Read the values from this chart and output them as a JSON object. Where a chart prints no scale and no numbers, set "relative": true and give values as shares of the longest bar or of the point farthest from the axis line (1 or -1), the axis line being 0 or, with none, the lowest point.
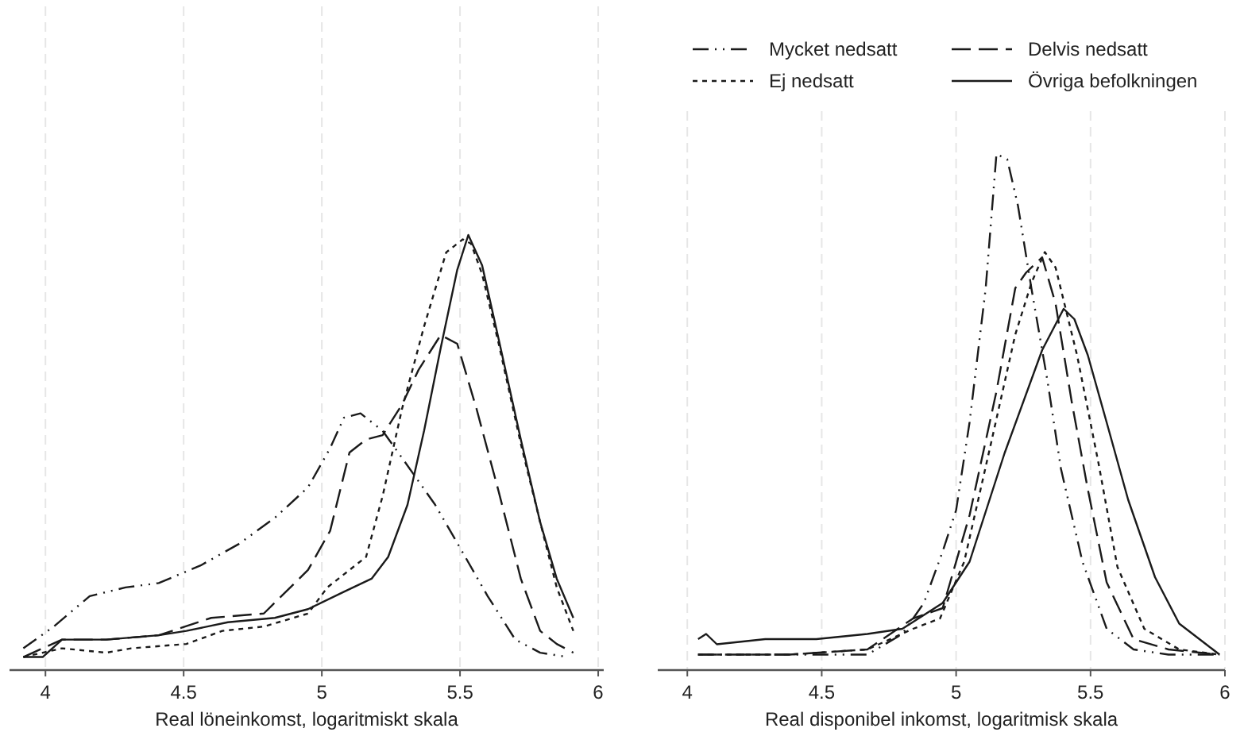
{
  "chart_data": [
    {
      "type": "line",
      "relative": true,
      "xlabel": "Real löneinkomst, logaritmiskt skala",
      "xlim": [
        3.87,
        6.02
      ],
      "xticks": [
        4,
        4.5,
        5,
        5.5,
        6
      ],
      "grid": "x",
      "legend": false,
      "series": [
        {
          "color": "#1a1a1a",
          "line_style": "dashdot",
          "x": [
            3.92,
            4.03,
            4.16,
            4.29,
            4.41,
            4.56,
            4.7,
            4.83,
            4.95,
            5.03,
            5.08,
            5.14,
            5.22,
            5.31,
            5.41,
            5.51,
            5.6,
            5.7,
            5.79,
            5.89
          ],
          "values": [
            0.05,
            0.1,
            0.17,
            0.19,
            0.2,
            0.24,
            0.29,
            0.35,
            0.42,
            0.51,
            0.58,
            0.59,
            0.55,
            0.47,
            0.38,
            0.27,
            0.17,
            0.07,
            0.04,
            0.03
          ]
        },
        {
          "color": "#1a1a1a",
          "line_style": "dashed",
          "x": [
            3.92,
            4.06,
            4.22,
            4.41,
            4.6,
            4.79,
            4.95,
            5.03,
            5.1,
            5.16,
            5.22,
            5.29,
            5.35,
            5.43,
            5.49,
            5.56,
            5.64,
            5.72,
            5.79,
            5.85,
            5.91
          ],
          "values": [
            0.03,
            0.07,
            0.07,
            0.08,
            0.12,
            0.13,
            0.23,
            0.32,
            0.5,
            0.53,
            0.54,
            0.61,
            0.69,
            0.77,
            0.75,
            0.6,
            0.41,
            0.21,
            0.09,
            0.06,
            0.04
          ]
        },
        {
          "color": "#1a1a1a",
          "line_style": "dotted",
          "x": [
            3.92,
            3.99,
            4.06,
            4.22,
            4.31,
            4.51,
            4.64,
            4.79,
            4.95,
            5.02,
            5.1,
            5.16,
            5.22,
            5.29,
            5.37,
            5.45,
            5.51,
            5.54,
            5.58,
            5.64,
            5.72,
            5.79,
            5.85,
            5.91
          ],
          "values": [
            0.03,
            0.04,
            0.05,
            0.04,
            0.05,
            0.06,
            0.09,
            0.1,
            0.13,
            0.19,
            0.23,
            0.26,
            0.4,
            0.6,
            0.79,
            0.96,
            0.99,
            0.98,
            0.91,
            0.75,
            0.52,
            0.34,
            0.19,
            0.09
          ]
        },
        {
          "color": "#1a1a1a",
          "line_style": "solid",
          "x": [
            3.92,
            3.99,
            4.06,
            4.22,
            4.41,
            4.51,
            4.66,
            4.83,
            4.95,
            5.08,
            5.18,
            5.24,
            5.31,
            5.37,
            5.43,
            5.49,
            5.53,
            5.58,
            5.64,
            5.72,
            5.79,
            5.85,
            5.91
          ],
          "values": [
            0.03,
            0.03,
            0.07,
            0.07,
            0.08,
            0.09,
            0.11,
            0.12,
            0.14,
            0.18,
            0.21,
            0.26,
            0.38,
            0.55,
            0.74,
            0.92,
            1.0,
            0.93,
            0.76,
            0.53,
            0.34,
            0.21,
            0.12
          ]
        }
      ]
    },
    {
      "type": "line",
      "relative": true,
      "xlabel": "Real disponibel inkomst, logaritmisk skala",
      "xlim": [
        3.89,
        6.0
      ],
      "xticks": [
        4,
        4.5,
        5,
        5.5,
        6
      ],
      "grid": "x",
      "legend": "top",
      "series": [
        {
          "name": "Mycket nedsatt",
          "color": "#1a1a1a",
          "line_style": "dashdot",
          "x": [
            4.04,
            4.38,
            4.67,
            4.8,
            4.88,
            4.95,
            5.0,
            5.05,
            5.11,
            5.15,
            5.19,
            5.23,
            5.28,
            5.34,
            5.39,
            5.47,
            5.56,
            5.66,
            5.79,
            5.98
          ],
          "values": [
            0.03,
            0.03,
            0.03,
            0.07,
            0.13,
            0.23,
            0.31,
            0.48,
            0.74,
            1.0,
            0.99,
            0.9,
            0.74,
            0.56,
            0.39,
            0.21,
            0.08,
            0.04,
            0.03,
            0.03
          ]
        },
        {
          "name": "Delvis nedsatt",
          "color": "#1a1a1a",
          "line_style": "dashed",
          "x": [
            4.04,
            4.38,
            4.67,
            4.84,
            4.95,
            5.05,
            5.15,
            5.22,
            5.26,
            5.32,
            5.37,
            5.43,
            5.49,
            5.56,
            5.66,
            5.79,
            5.98
          ],
          "values": [
            0.03,
            0.03,
            0.04,
            0.1,
            0.12,
            0.3,
            0.54,
            0.74,
            0.77,
            0.8,
            0.71,
            0.52,
            0.35,
            0.17,
            0.06,
            0.04,
            0.03
          ]
        },
        {
          "name": "Ej nedsatt",
          "color": "#1a1a1a",
          "line_style": "dotted",
          "x": [
            4.04,
            4.38,
            4.67,
            4.84,
            4.94,
            5.03,
            5.13,
            5.22,
            5.28,
            5.33,
            5.37,
            5.45,
            5.53,
            5.6,
            5.7,
            5.83,
            5.98
          ],
          "values": [
            0.03,
            0.03,
            0.04,
            0.08,
            0.1,
            0.21,
            0.44,
            0.65,
            0.75,
            0.81,
            0.78,
            0.61,
            0.4,
            0.2,
            0.08,
            0.04,
            0.03
          ]
        },
        {
          "name": "Övriga befolkningen",
          "color": "#1a1a1a",
          "line_style": "solid",
          "x": [
            4.04,
            4.07,
            4.11,
            4.29,
            4.48,
            4.67,
            4.8,
            4.95,
            5.05,
            5.18,
            5.32,
            5.4,
            5.44,
            5.49,
            5.56,
            5.64,
            5.74,
            5.83,
            5.93,
            5.98
          ],
          "values": [
            0.06,
            0.07,
            0.05,
            0.06,
            0.06,
            0.07,
            0.08,
            0.13,
            0.21,
            0.42,
            0.62,
            0.7,
            0.68,
            0.61,
            0.48,
            0.33,
            0.18,
            0.09,
            0.05,
            0.03
          ]
        }
      ]
    }
  ]
}
